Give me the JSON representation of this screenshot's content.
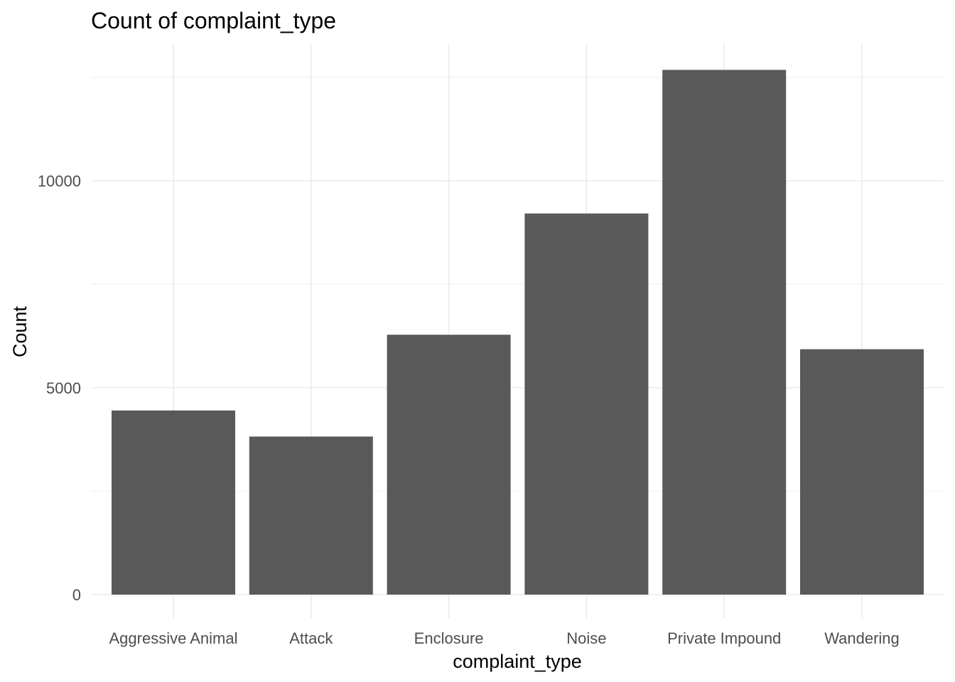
{
  "chart_data": {
    "type": "bar",
    "title": "Count of complaint_type",
    "xlabel": "complaint_type",
    "ylabel": "Count",
    "categories": [
      "Aggressive Animal",
      "Attack",
      "Enclosure",
      "Noise",
      "Private Impound",
      "Wandering"
    ],
    "values": [
      4450,
      3820,
      6280,
      9210,
      12680,
      5930
    ],
    "y_ticks": [
      0,
      5000,
      10000
    ],
    "y_tick_labels": [
      "0",
      "5000",
      "10000"
    ],
    "ylim": [
      0,
      13350
    ],
    "bar_color": "#595959",
    "grid": true,
    "legend": "none"
  }
}
